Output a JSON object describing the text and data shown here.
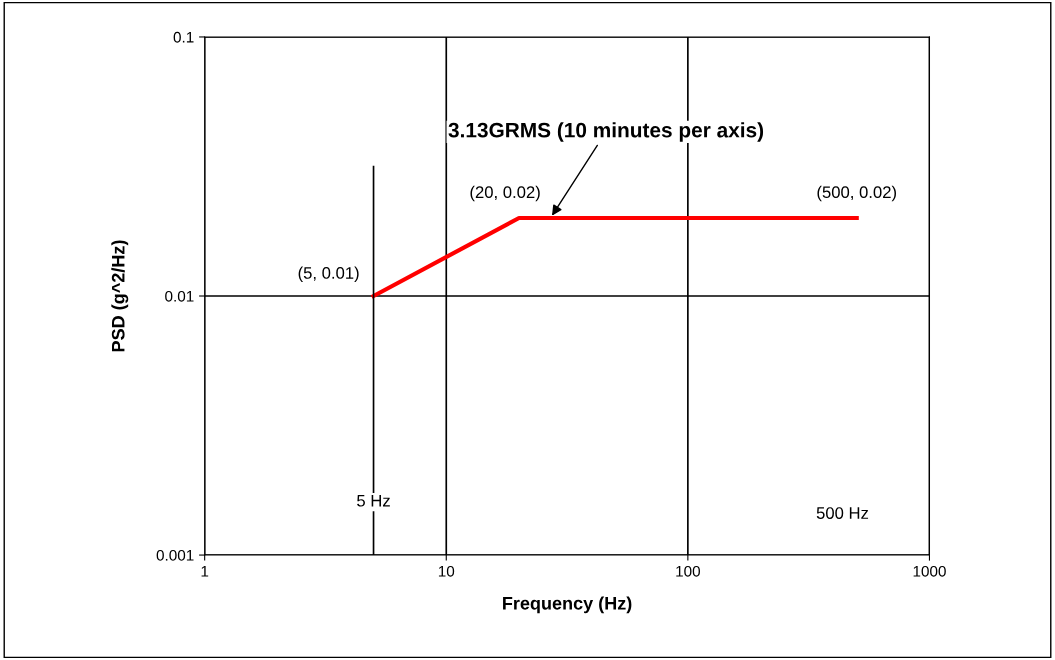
{
  "chart_data": {
    "type": "line",
    "xlabel": "Frequency (Hz)",
    "ylabel": "PSD (g^2/Hz)",
    "x": [
      5,
      20,
      500
    ],
    "series": [
      {
        "color": "#ff0000",
        "values": [
          0.01,
          0.02,
          0.02
        ]
      }
    ],
    "log": "xy",
    "xlim": [
      1,
      1000
    ],
    "ylim": [
      0.001,
      0.1
    ],
    "xticks": [
      1,
      10,
      100,
      1000
    ],
    "yticks": [
      0.001,
      0.01,
      0.1
    ],
    "grid": true,
    "marker": "none",
    "line_style": "solid",
    "ref_lines": [
      {
        "axis": "x",
        "value": 5,
        "label": "5 Hz",
        "color": "#000000"
      }
    ],
    "annotations": [
      {
        "text": "(5, 0.01)",
        "x": 5,
        "y": 0.01
      },
      {
        "text": "(20, 0.02)",
        "x": 20,
        "y": 0.02
      },
      {
        "text": "(500, 0.02)",
        "x": 500,
        "y": 0.02
      },
      {
        "text": "3.13GRMS (10 minutes per axis)",
        "x": 27,
        "y": 0.02
      },
      "500 Hz"
    ]
  }
}
